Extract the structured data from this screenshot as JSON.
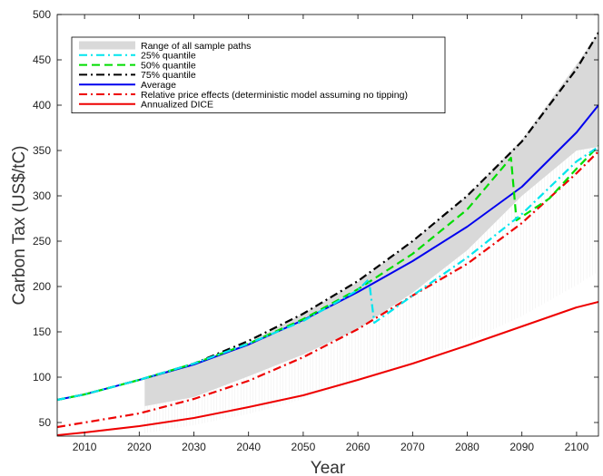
{
  "chart_data": {
    "type": "line",
    "title": "",
    "xlabel": "Year",
    "ylabel": "Carbon Tax (US$/tC)",
    "xlim": [
      2005,
      2104
    ],
    "ylim": [
      35,
      500
    ],
    "xticks": [
      2010,
      2020,
      2030,
      2040,
      2050,
      2060,
      2070,
      2080,
      2090,
      2100
    ],
    "yticks": [
      50,
      100,
      150,
      200,
      250,
      300,
      350,
      400,
      450,
      500
    ],
    "grid": false,
    "legend_position": "top-left",
    "legend": [
      {
        "label": "Range of all sample paths",
        "color": "#d9d9d9",
        "style": "band"
      },
      {
        "label": "25% quantile",
        "color": "#00e5ee",
        "style": "dashdot"
      },
      {
        "label": "50% quantile",
        "color": "#00dd00",
        "style": "dashed"
      },
      {
        "label": "75% quantile",
        "color": "#000000",
        "style": "dashdot"
      },
      {
        "label": "Average",
        "color": "#0000ee",
        "style": "solid"
      },
      {
        "label": "Relative price effects (deterministic model assuming no tipping)",
        "color": "#ee0000",
        "style": "dashdot"
      },
      {
        "label": "Annualized DICE",
        "color": "#ee0000",
        "style": "solid"
      }
    ],
    "series": [
      {
        "name": "Range of all sample paths",
        "type": "band",
        "x": [
          2021,
          2030,
          2040,
          2050,
          2060,
          2070,
          2080,
          2090,
          2100,
          2104
        ],
        "lower": [
          68,
          78,
          101,
          125,
          153,
          193,
          240,
          300,
          350,
          354
        ],
        "upper": [
          100,
          115,
          138,
          170,
          205,
          250,
          300,
          362,
          445,
          480
        ]
      },
      {
        "name": "25% quantile",
        "x": [
          2005,
          2010,
          2020,
          2030,
          2040,
          2050,
          2060,
          2062,
          2063,
          2070,
          2080,
          2090,
          2100,
          2104
        ],
        "y": [
          75,
          81,
          97,
          115,
          137,
          162,
          196,
          208,
          160,
          190,
          232,
          280,
          338,
          354
        ]
      },
      {
        "name": "50% quantile",
        "x": [
          2005,
          2010,
          2020,
          2030,
          2040,
          2050,
          2060,
          2070,
          2080,
          2088,
          2089,
          2095,
          2100,
          2104
        ],
        "y": [
          75,
          81,
          97,
          115,
          137,
          164,
          197,
          236,
          285,
          342,
          273,
          297,
          330,
          355
        ]
      },
      {
        "name": "75% quantile",
        "x": [
          2005,
          2010,
          2020,
          2030,
          2040,
          2050,
          2060,
          2070,
          2080,
          2090,
          2100,
          2104
        ],
        "y": [
          75,
          81,
          97,
          115,
          140,
          170,
          206,
          250,
          300,
          360,
          440,
          480
        ]
      },
      {
        "name": "Average",
        "x": [
          2005,
          2010,
          2020,
          2030,
          2040,
          2050,
          2060,
          2070,
          2080,
          2090,
          2100,
          2104
        ],
        "y": [
          75,
          81,
          97,
          114,
          136,
          163,
          194,
          228,
          266,
          310,
          370,
          400
        ]
      },
      {
        "name": "Relative price effects (deterministic model assuming no tipping)",
        "x": [
          2005,
          2010,
          2020,
          2030,
          2040,
          2050,
          2060,
          2070,
          2080,
          2090,
          2100,
          2104
        ],
        "y": [
          45,
          50,
          60,
          76,
          96,
          122,
          153,
          190,
          225,
          270,
          325,
          349
        ]
      },
      {
        "name": "Annualized DICE",
        "x": [
          2005,
          2010,
          2020,
          2030,
          2040,
          2050,
          2060,
          2070,
          2080,
          2090,
          2100,
          2104
        ],
        "y": [
          36,
          39,
          46,
          55,
          67,
          80,
          97,
          115,
          135,
          156,
          177,
          183
        ]
      }
    ]
  }
}
